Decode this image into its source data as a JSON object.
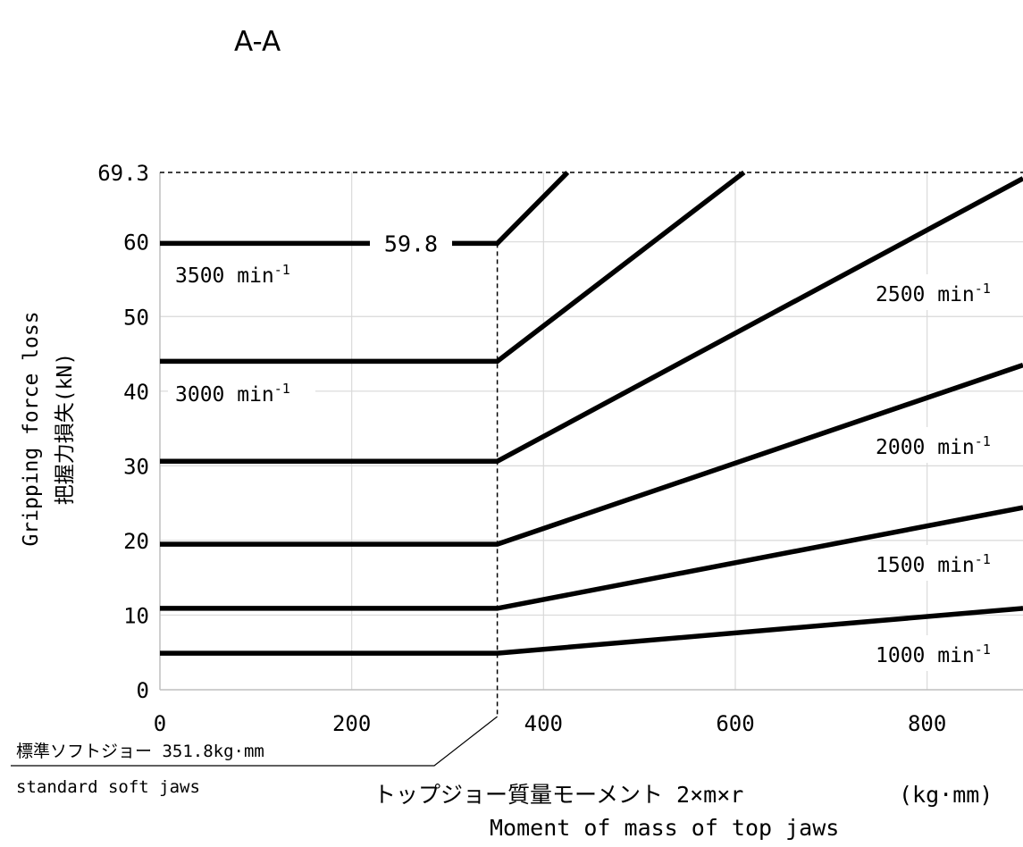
{
  "chart_data": {
    "type": "line",
    "title": "A-A",
    "xlabel_ja": "トップジョー質量モーメント 2×m×r",
    "xlabel_unit": "(kg·mm)",
    "xlabel_en": "Moment of mass of top jaws",
    "ylabel_en": "Gripping force loss",
    "ylabel_ja": "把握力損失(kN)",
    "xlim": [
      0,
      900
    ],
    "ylim": [
      0,
      69.3
    ],
    "x_ticks": [
      0,
      200,
      400,
      600,
      800
    ],
    "y_ticks": [
      0,
      10,
      20,
      30,
      40,
      50,
      60
    ],
    "y_tick_labels": [
      "0",
      "10",
      "20",
      "30",
      "40",
      "50",
      "60"
    ],
    "y_max_label": "69.3",
    "grid": true,
    "threshold_x": 351.8,
    "threshold_label_ja": "標準ソフトジョー 351.8kg·mm",
    "threshold_label_en": "standard soft jaws",
    "cap_value": 69.3,
    "value_annotation": "59.8",
    "series": [
      {
        "name": "1000 min",
        "points": [
          [
            0,
            4.9
          ],
          [
            351.8,
            4.9
          ],
          [
            900,
            10.9
          ]
        ]
      },
      {
        "name": "1500 min",
        "points": [
          [
            0,
            10.9
          ],
          [
            351.8,
            10.9
          ],
          [
            900,
            24.4
          ]
        ]
      },
      {
        "name": "2000 min",
        "points": [
          [
            0,
            19.5
          ],
          [
            351.8,
            19.5
          ],
          [
            900,
            43.5
          ]
        ]
      },
      {
        "name": "2500 min",
        "points": [
          [
            0,
            30.6
          ],
          [
            351.8,
            30.6
          ],
          [
            900,
            68.5
          ]
        ]
      },
      {
        "name": "3000 min",
        "points": [
          [
            0,
            44.0
          ],
          [
            351.8,
            44.0
          ],
          [
            609,
            69.3
          ]
        ]
      },
      {
        "name": "3500 min",
        "points": [
          [
            0,
            59.8
          ],
          [
            351.8,
            59.8
          ],
          [
            425,
            69.3
          ]
        ]
      }
    ],
    "series_label_superscript": "-1",
    "series_labels": [
      {
        "text": "3500 min",
        "series": "3500 min"
      },
      {
        "text": "3000 min",
        "series": "3000 min"
      },
      {
        "text": "2500 min",
        "series": "2500 min"
      },
      {
        "text": "2000 min",
        "series": "2000 min"
      },
      {
        "text": "1500 min",
        "series": "1500 min"
      },
      {
        "text": "1000 min",
        "series": "1000 min"
      }
    ]
  }
}
